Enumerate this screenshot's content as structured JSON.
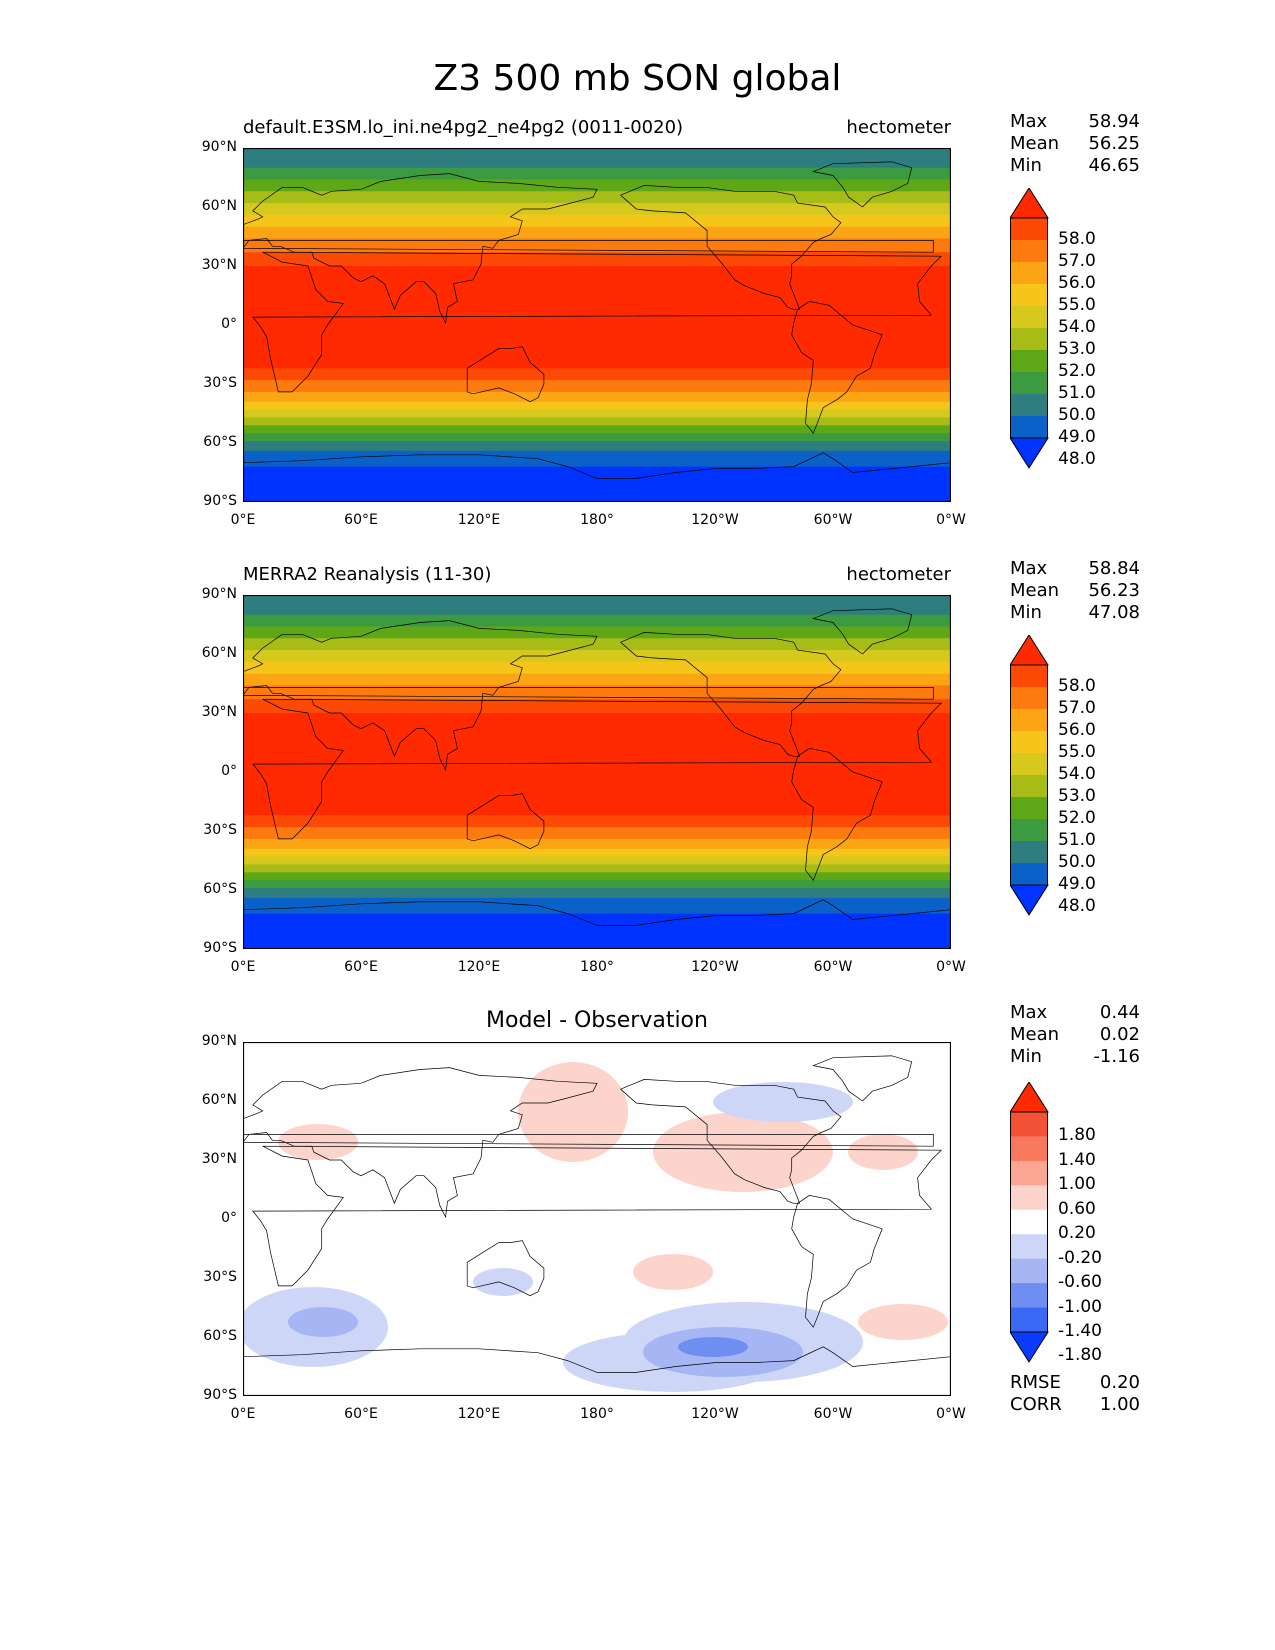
{
  "figure": {
    "title": "Z3 500 mb SON global"
  },
  "axes": {
    "lat_ticks": [
      "90°N",
      "60°N",
      "30°N",
      "0°",
      "30°S",
      "60°S",
      "90°S"
    ],
    "lon_ticks": [
      "0°E",
      "60°E",
      "120°E",
      "180°",
      "120°W",
      "60°W",
      "0°W"
    ]
  },
  "panels": [
    {
      "title_left": "default.E3SM.lo_ini.ne4pg2_ne4pg2 (0011-0020)",
      "title_right": "hectometer",
      "stats": [
        {
          "label": "Max",
          "value": "58.94"
        },
        {
          "label": "Mean",
          "value": "56.25"
        },
        {
          "label": "Min",
          "value": "46.65"
        }
      ],
      "colorbar_labels": [
        "58.0",
        "57.0",
        "56.0",
        "55.0",
        "54.0",
        "53.0",
        "52.0",
        "51.0",
        "50.0",
        "49.0",
        "48.0"
      ]
    },
    {
      "title_left": "MERRA2 Reanalysis (11-30)",
      "title_right": "hectometer",
      "stats": [
        {
          "label": "Max",
          "value": "58.84"
        },
        {
          "label": "Mean",
          "value": "56.23"
        },
        {
          "label": "Min",
          "value": "47.08"
        }
      ],
      "colorbar_labels": [
        "58.0",
        "57.0",
        "56.0",
        "55.0",
        "54.0",
        "53.0",
        "52.0",
        "51.0",
        "50.0",
        "49.0",
        "48.0"
      ]
    },
    {
      "title_center": "Model - Observation",
      "stats": [
        {
          "label": "Max",
          "value": "0.44"
        },
        {
          "label": "Mean",
          "value": "0.02"
        },
        {
          "label": "Min",
          "value": "-1.16"
        }
      ],
      "colorbar_labels": [
        "1.80",
        "1.40",
        "1.00",
        "0.60",
        "0.20",
        "-0.20",
        "-0.60",
        "-1.00",
        "-1.40",
        "-1.80"
      ],
      "metrics": [
        {
          "label": "RMSE",
          "value": "0.20"
        },
        {
          "label": "CORR",
          "value": "1.00"
        }
      ]
    }
  ],
  "colors": {
    "field_levels": [
      "#0033ff",
      "#0a62c8",
      "#2e7e80",
      "#3c9a40",
      "#5ea818",
      "#a8bc18",
      "#d6c81c",
      "#f6c51a",
      "#fba414",
      "#fc7a0e",
      "#fc4a06",
      "#ff2a00"
    ],
    "diff_levels": [
      "#0a3cff",
      "#3a6af5",
      "#6f8ef2",
      "#a6b6f5",
      "#cdd6f7",
      "#fefefe",
      "#fcd4cc",
      "#fba593",
      "#f8785e",
      "#f45236",
      "#ff2a00"
    ]
  }
}
